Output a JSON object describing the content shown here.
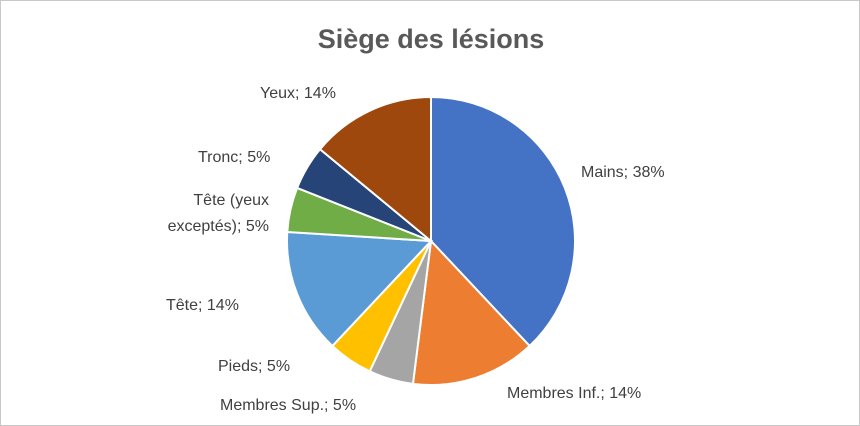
{
  "chart_data": {
    "type": "pie",
    "title": "Siège des lésions",
    "values": [
      38,
      14,
      5,
      5,
      14,
      5,
      5,
      14
    ],
    "value_labels": [
      "Mains; 38%",
      "Membres Inf.; 14%",
      "Membres Sup.; 5%",
      "Pieds; 5%",
      "Tête; 14%",
      "Tête (yeux exceptés); 5%",
      "Tronc; 5%",
      "Yeux; 14%"
    ],
    "colors": [
      "#4472c4",
      "#ed7d31",
      "#a5a5a5",
      "#ffc000",
      "#5b9bd5",
      "#70ad47",
      "#264478",
      "#9e480e"
    ]
  }
}
